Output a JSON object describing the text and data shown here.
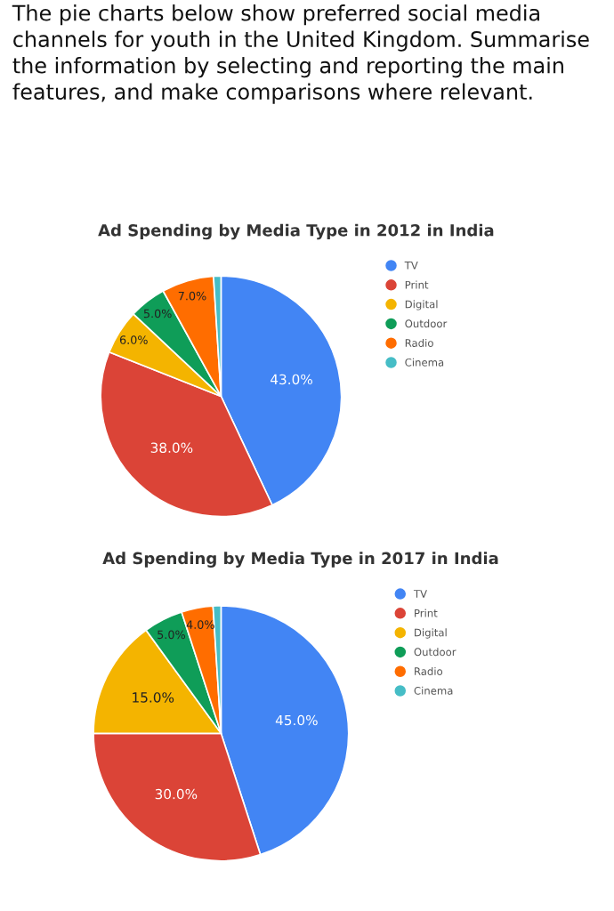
{
  "chart_data": [
    {
      "type": "pie",
      "title": "Ad Spending by Media Type in 2012 in India",
      "annotations": [
        "The pie charts below show preferred social media channels for youth in the United Kingdom. Summarise the information by selecting and reporting the main features, and make comparisons where relevant."
      ],
      "categories": [
        "TV",
        "Print",
        "Digital",
        "Outdoor",
        "Radio",
        "Cinema"
      ],
      "values": [
        43,
        38,
        6,
        5,
        7,
        1
      ],
      "value_labels": [
        "43.0%",
        "38.0%",
        "6.0%",
        "5.0%",
        "7.0%",
        null
      ],
      "colors": [
        "#4285f4",
        "#db4437",
        "#f4b400",
        "#0f9d58",
        "#ff6d00",
        "#46bdc6"
      ],
      "legend": "right"
    },
    {
      "type": "pie",
      "title": "Ad Spending by Media Type in 2017 in India",
      "categories": [
        "TV",
        "Print",
        "Digital",
        "Outdoor",
        "Radio",
        "Cinema"
      ],
      "values": [
        45,
        30,
        15,
        5,
        4,
        1
      ],
      "value_labels": [
        "45.0%",
        "30.0%",
        "15.0%",
        "5.0%",
        "4.0%",
        null
      ],
      "colors": [
        "#4285f4",
        "#db4437",
        "#f4b400",
        "#0f9d58",
        "#ff6d00",
        "#46bdc6"
      ],
      "legend": "right"
    }
  ]
}
